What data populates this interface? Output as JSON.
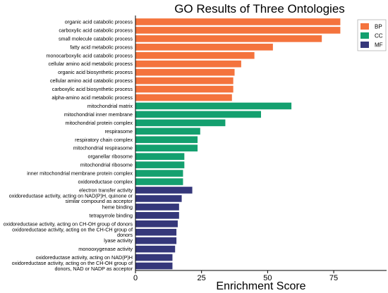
{
  "chart_data": {
    "type": "bar",
    "orientation": "horizontal",
    "title": "GO Results of Three Ontologies",
    "xlabel": "Enrichment Score",
    "ylabel": "",
    "xlim": [
      0,
      95
    ],
    "xticks": [
      0,
      25,
      50,
      75
    ],
    "grid": false,
    "legend_position": "top-right",
    "series": [
      {
        "name": "BP",
        "color": "#F4733D",
        "categories": [
          "organic acid catabolic process",
          "carboxylic acid catabolic process",
          "small molecule catabolic process",
          "fatty acid metabolic process",
          "monocarboxylic acid catabolic process",
          "cellular amino acid metabolic process",
          "organic acid biosynthetic process",
          "cellular amino acid catabolic process",
          "carboxylic acid biosynthetic process",
          "alpha-amino acid metabolic process"
        ],
        "values": [
          77.5,
          77.5,
          70.5,
          52,
          45,
          40,
          37.5,
          37,
          37,
          36.5
        ]
      },
      {
        "name": "CC",
        "color": "#14A06F",
        "categories": [
          "mitochondrial matrix",
          "mitochondrial inner membrane",
          "mitochondrial protein complex",
          "respirasome",
          "respiratory chain complex",
          "mitochondrial respirasome",
          "organellar ribosome",
          "mitochondrial ribosome",
          "inner mitochondrial membrane protein complex",
          "oxidoreductase complex"
        ],
        "values": [
          59,
          47.5,
          34,
          24.5,
          23.5,
          23.5,
          18.5,
          18.5,
          18,
          18
        ]
      },
      {
        "name": "MF",
        "color": "#35377A",
        "categories": [
          "electron transfer activity",
          "oxidoreductase activity, acting on NAD(P)H, quinone or similar compound as acceptor",
          "heme binding",
          "tetrapyrrole binding",
          "oxidoreductase activity, acting on CH-OH group of donors",
          "oxidoreductase activity, acting on the CH-CH group of donors",
          "lyase activity",
          "monooxygenase activity",
          "oxidoreductase activity, acting on NAD(P)H",
          "oxidoreductase activity, acting on the CH-OH group of donors, NAD or NADP as acceptor"
        ],
        "values": [
          21.5,
          17.5,
          16.5,
          16.5,
          16,
          15.5,
          15.5,
          15,
          14,
          14
        ]
      }
    ]
  }
}
